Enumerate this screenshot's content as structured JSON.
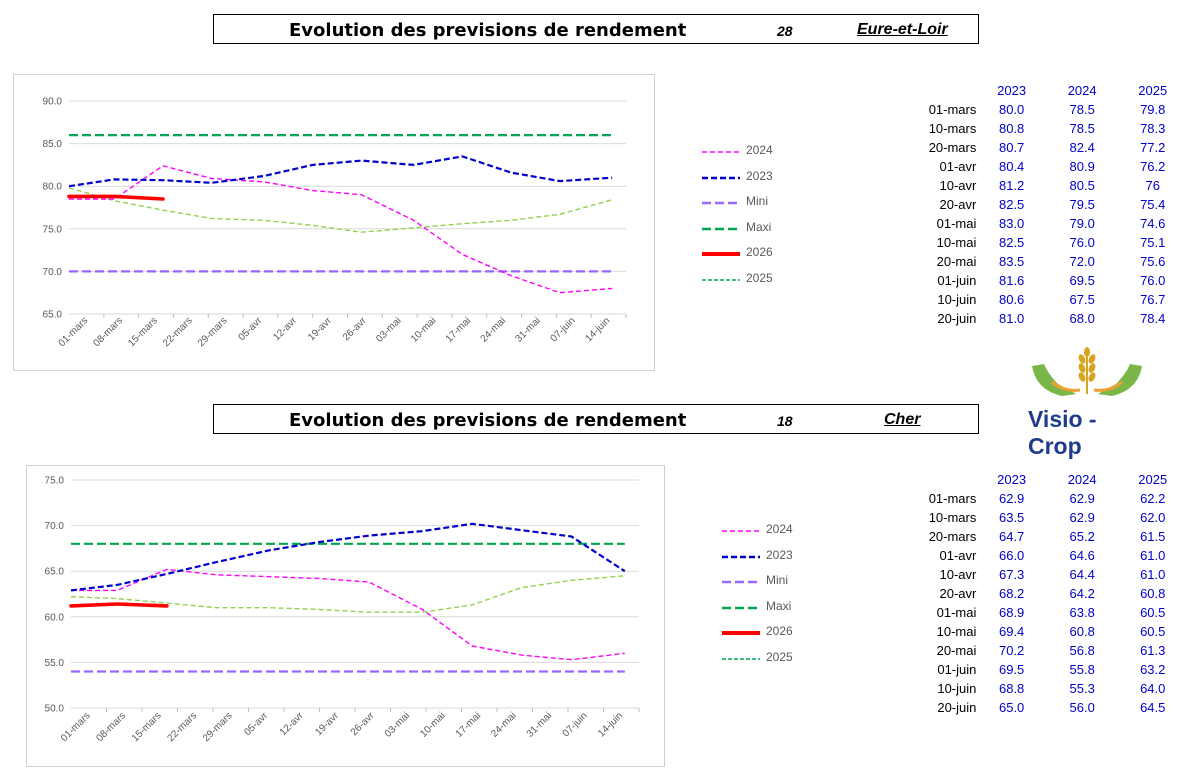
{
  "sections": [
    {
      "title": "Evolution des previsions de rendement",
      "code": "28",
      "department": "Eure-et-Loir"
    },
    {
      "title": "Evolution des previsions de rendement",
      "code": "18",
      "department": "Cher"
    }
  ],
  "legend": [
    "2024",
    "2023",
    "Mini",
    "Maxi",
    "2026",
    "2025"
  ],
  "colors": {
    "s2024": "#ff00ff",
    "s2023": "#0000cc",
    "mini": "#9966ff",
    "maxi": "#00a651",
    "s2026": "#ff0000",
    "s2025": "#92d050",
    "table_value": "#0000cc"
  },
  "tables": [
    {
      "years": [
        "2023",
        "2024",
        "2025"
      ],
      "rows": [
        {
          "label": "01-mars",
          "values": [
            "80.0",
            "78.5",
            "79.8"
          ]
        },
        {
          "label": "10-mars",
          "values": [
            "80.8",
            "78.5",
            "78.3"
          ]
        },
        {
          "label": "20-mars",
          "values": [
            "80.7",
            "82.4",
            "77.2"
          ]
        },
        {
          "label": "01-avr",
          "values": [
            "80.4",
            "80.9",
            "76.2"
          ]
        },
        {
          "label": "10-avr",
          "values": [
            "81.2",
            "80.5",
            "76"
          ]
        },
        {
          "label": "20-avr",
          "values": [
            "82.5",
            "79.5",
            "75.4"
          ]
        },
        {
          "label": "01-mai",
          "values": [
            "83.0",
            "79.0",
            "74.6"
          ]
        },
        {
          "label": "10-mai",
          "values": [
            "82.5",
            "76.0",
            "75.1"
          ]
        },
        {
          "label": "20-mai",
          "values": [
            "83.5",
            "72.0",
            "75.6"
          ]
        },
        {
          "label": "01-juin",
          "values": [
            "81.6",
            "69.5",
            "76.0"
          ]
        },
        {
          "label": "10-juin",
          "values": [
            "80.6",
            "67.5",
            "76.7"
          ]
        },
        {
          "label": "20-juin",
          "values": [
            "81.0",
            "68.0",
            "78.4"
          ]
        }
      ]
    },
    {
      "years": [
        "2023",
        "2024",
        "2025"
      ],
      "rows": [
        {
          "label": "01-mars",
          "values": [
            "62.9",
            "62.9",
            "62.2"
          ]
        },
        {
          "label": "10-mars",
          "values": [
            "63.5",
            "62.9",
            "62.0"
          ]
        },
        {
          "label": "20-mars",
          "values": [
            "64.7",
            "65.2",
            "61.5"
          ]
        },
        {
          "label": "01-avr",
          "values": [
            "66.0",
            "64.6",
            "61.0"
          ]
        },
        {
          "label": "10-avr",
          "values": [
            "67.3",
            "64.4",
            "61.0"
          ]
        },
        {
          "label": "20-avr",
          "values": [
            "68.2",
            "64.2",
            "60.8"
          ]
        },
        {
          "label": "01-mai",
          "values": [
            "68.9",
            "63.8",
            "60.5"
          ]
        },
        {
          "label": "10-mai",
          "values": [
            "69.4",
            "60.8",
            "60.5"
          ]
        },
        {
          "label": "20-mai",
          "values": [
            "70.2",
            "56.8",
            "61.3"
          ]
        },
        {
          "label": "01-juin",
          "values": [
            "69.5",
            "55.8",
            "63.2"
          ]
        },
        {
          "label": "10-juin",
          "values": [
            "68.8",
            "55.3",
            "64.0"
          ]
        },
        {
          "label": "20-juin",
          "values": [
            "65.0",
            "56.0",
            "64.5"
          ]
        }
      ]
    }
  ],
  "logo": {
    "text": "Visio - Crop"
  },
  "chart_data": [
    {
      "type": "line",
      "title": "Evolution des previsions de rendement - Eure-et-Loir",
      "ylim": [
        65,
        90
      ],
      "yticks": [
        "90.0",
        "85.0",
        "80.0",
        "75.0",
        "70.0",
        "65.0"
      ],
      "categories": [
        "01-mars",
        "08-mars",
        "15-mars",
        "22-mars",
        "29-mars",
        "05-avr",
        "12-avr",
        "19-avr",
        "26-avr",
        "03-mai",
        "10-mai",
        "17-mai",
        "24-mai",
        "31-mai",
        "07-juin",
        "14-juin"
      ],
      "series": [
        {
          "name": "2024",
          "x": [
            0,
            1.3,
            2.7,
            4.1,
            5.6,
            7.0,
            8.4,
            9.9,
            11.3,
            12.7,
            14.1,
            15.6
          ],
          "values": [
            78.5,
            78.5,
            82.4,
            80.9,
            80.5,
            79.5,
            79.0,
            76.0,
            72.0,
            69.5,
            67.5,
            68.0
          ]
        },
        {
          "name": "2023",
          "x": [
            0,
            1.3,
            2.7,
            4.1,
            5.6,
            7.0,
            8.4,
            9.9,
            11.3,
            12.7,
            14.1,
            15.6
          ],
          "values": [
            80.0,
            80.8,
            80.7,
            80.4,
            81.2,
            82.5,
            83.0,
            82.5,
            83.5,
            81.6,
            80.6,
            81.0
          ]
        },
        {
          "name": "Mini",
          "x": [
            0,
            15.6
          ],
          "values": [
            70.0,
            70.0
          ]
        },
        {
          "name": "Maxi",
          "x": [
            0,
            15.6
          ],
          "values": [
            86.0,
            86.0
          ]
        },
        {
          "name": "2026",
          "x": [
            0,
            1.3,
            2.7
          ],
          "values": [
            78.8,
            78.8,
            78.5
          ]
        },
        {
          "name": "2025",
          "x": [
            0,
            1.3,
            2.7,
            4.1,
            5.6,
            7.0,
            8.4,
            9.9,
            11.3,
            12.7,
            14.1,
            15.6
          ],
          "values": [
            79.8,
            78.3,
            77.2,
            76.2,
            76.0,
            75.4,
            74.6,
            75.1,
            75.6,
            76.0,
            76.7,
            78.4
          ]
        }
      ]
    },
    {
      "type": "line",
      "title": "Evolution des previsions de rendement - Cher",
      "ylim": [
        50,
        75
      ],
      "yticks": [
        "75.0",
        "70.0",
        "65.0",
        "60.0",
        "55.0",
        "50.0"
      ],
      "categories": [
        "01-mars",
        "08-mars",
        "15-mars",
        "22-mars",
        "29-mars",
        "05-avr",
        "12-avr",
        "19-avr",
        "26-avr",
        "03-mai",
        "10-mai",
        "17-mai",
        "24-mai",
        "31-mai",
        "07-juin",
        "14-juin"
      ],
      "series": [
        {
          "name": "2024",
          "x": [
            0,
            1.3,
            2.7,
            4.1,
            5.6,
            7.0,
            8.4,
            9.9,
            11.3,
            12.7,
            14.1,
            15.6
          ],
          "values": [
            62.9,
            62.9,
            65.2,
            64.6,
            64.4,
            64.2,
            63.8,
            60.8,
            56.8,
            55.8,
            55.3,
            56.0
          ]
        },
        {
          "name": "2023",
          "x": [
            0,
            1.3,
            2.7,
            4.1,
            5.6,
            7.0,
            8.4,
            9.9,
            11.3,
            12.7,
            14.1,
            15.6
          ],
          "values": [
            62.9,
            63.5,
            64.7,
            66.0,
            67.3,
            68.2,
            68.9,
            69.4,
            70.2,
            69.5,
            68.8,
            65.0
          ]
        },
        {
          "name": "Mini",
          "x": [
            0,
            15.6
          ],
          "values": [
            54.0,
            54.0
          ]
        },
        {
          "name": "Maxi",
          "x": [
            0,
            15.6
          ],
          "values": [
            68.0,
            68.0
          ]
        },
        {
          "name": "2026",
          "x": [
            0,
            1.3,
            2.7
          ],
          "values": [
            61.2,
            61.4,
            61.2
          ]
        },
        {
          "name": "2025",
          "x": [
            0,
            1.3,
            2.7,
            4.1,
            5.6,
            7.0,
            8.4,
            9.9,
            11.3,
            12.7,
            14.1,
            15.6
          ],
          "values": [
            62.2,
            62.0,
            61.5,
            61.0,
            61.0,
            60.8,
            60.5,
            60.5,
            61.3,
            63.2,
            64.0,
            64.5
          ]
        }
      ]
    }
  ]
}
